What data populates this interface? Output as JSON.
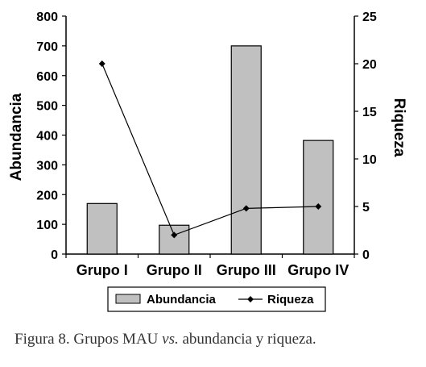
{
  "chart_data": {
    "type": "bar",
    "categories": [
      "Grupo I",
      "Grupo II",
      "Grupo III",
      "Grupo IV"
    ],
    "series": [
      {
        "name": "Abundancia",
        "kind": "bar",
        "axis": "left",
        "values": [
          170,
          97,
          700,
          382
        ],
        "color": "#c0c0c0"
      },
      {
        "name": "Riqueza",
        "kind": "line",
        "axis": "right",
        "values": [
          20,
          2,
          4.8,
          5
        ],
        "color": "#000000"
      }
    ],
    "ylabel": "Abundancia",
    "y2label": "Riqueza",
    "ylim": [
      0,
      800
    ],
    "y2lim": [
      0,
      25
    ],
    "yticks": [
      "0",
      "100",
      "200",
      "300",
      "400",
      "500",
      "600",
      "700",
      "800"
    ],
    "y2ticks": [
      "0",
      "5",
      "10",
      "15",
      "20",
      "25"
    ],
    "legend": [
      "Abundancia",
      "Riqueza"
    ],
    "legend_position": "bottom",
    "grid": false
  },
  "caption": {
    "prefix": "Figura 8. Grupos MAU ",
    "vs": "vs.",
    "suffix": " abundancia y riqueza."
  }
}
